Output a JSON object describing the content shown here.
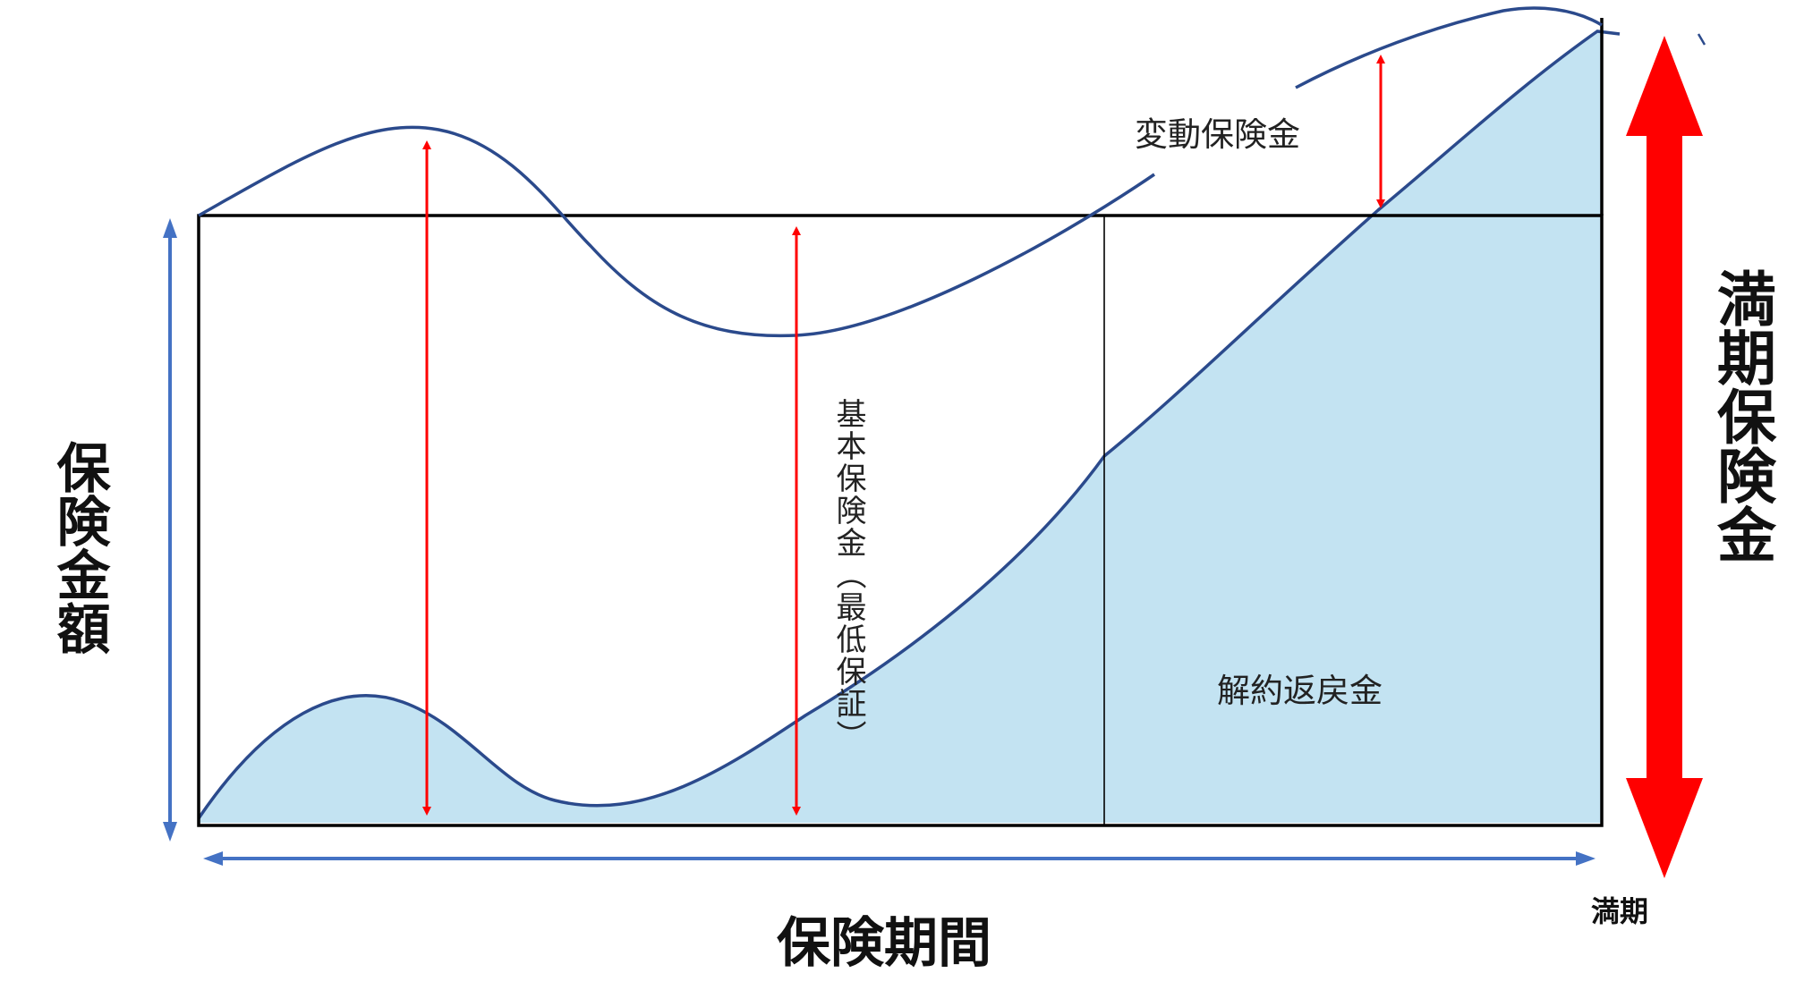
{
  "labels": {
    "variable_benefit": "変動保険金",
    "basic_benefit": "基本保険金（最低保証）",
    "surrender_value": "解約返戻金",
    "insured_amount": "保険金額",
    "policy_period": "保険期間",
    "maturity_benefit": "満期保険金",
    "maturity": "満期"
  },
  "colors": {
    "curve": "#2b4a8c",
    "surrender_fill": "#c3e3f2",
    "red_arrow": "#ff0000",
    "axis_arrow": "#4472c4",
    "frame": "#000000"
  }
}
